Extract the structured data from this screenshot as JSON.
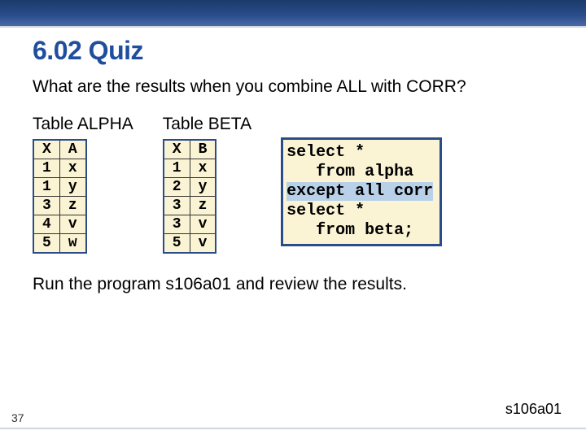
{
  "title": "6.02 Quiz",
  "question": "What are the results when you combine ALL with CORR?",
  "table_alpha": {
    "caption": "Table ALPHA",
    "columns": [
      "X",
      "A"
    ],
    "rows": [
      [
        "1",
        "x"
      ],
      [
        "1",
        "y"
      ],
      [
        "3",
        "z"
      ],
      [
        "4",
        "v"
      ],
      [
        "5",
        "w"
      ]
    ],
    "border_color": "#2a4d8a",
    "background": "#faf3d4",
    "font": "Courier New"
  },
  "table_beta": {
    "caption": "Table BETA",
    "columns": [
      "X",
      "B"
    ],
    "rows": [
      [
        "1",
        "x"
      ],
      [
        "2",
        "y"
      ],
      [
        "3",
        "z"
      ],
      [
        "3",
        "v"
      ],
      [
        "5",
        "v"
      ]
    ],
    "border_color": "#2a4d8a",
    "background": "#faf3d4",
    "font": "Courier New"
  },
  "code": {
    "lines": [
      "select *",
      "   from alpha",
      "except all corr",
      "select *",
      "   from beta;"
    ],
    "highlight_line_index": 2,
    "border_color": "#2a4d8a",
    "background": "#faf3d4",
    "highlight_color": "#b8d0e8",
    "font": "Courier New"
  },
  "run_note": "Run the program s106a01 and review the results.",
  "page_number": "37",
  "file_ref": "s106a01",
  "banner_gradient": [
    "#1b3a6b",
    "#2a4d8a",
    "#4a6aa8"
  ]
}
